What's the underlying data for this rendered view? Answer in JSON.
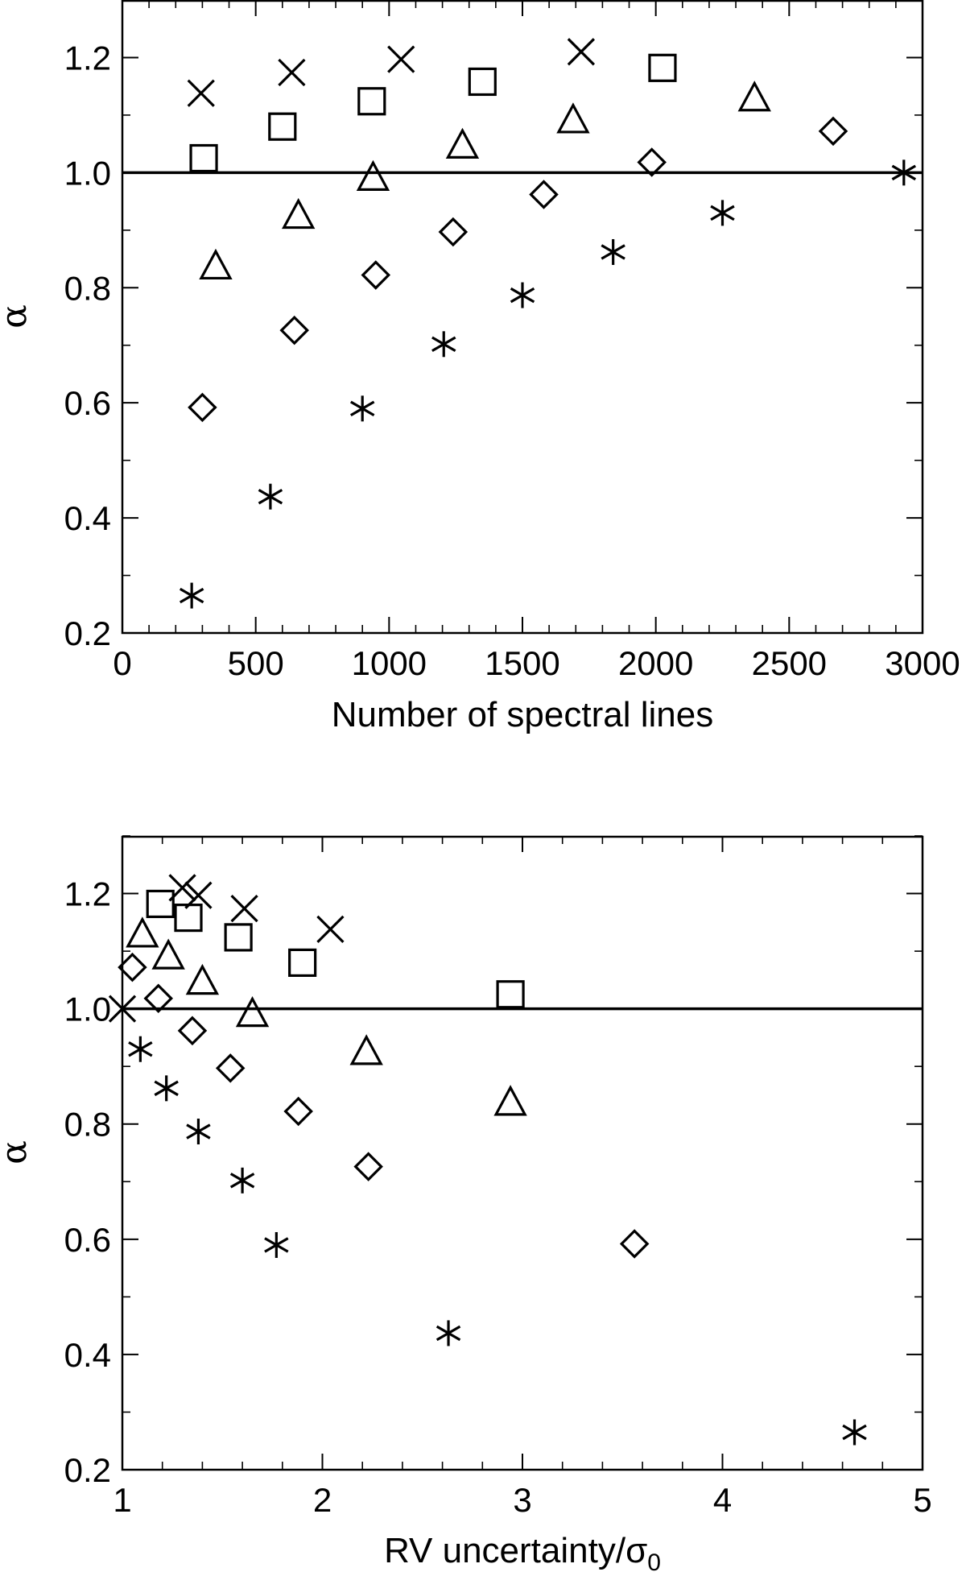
{
  "chart_data": [
    {
      "type": "scatter",
      "xlabel": "Number of spectral lines",
      "ylabel": "α",
      "xlim": [
        0,
        3000
      ],
      "ylim": [
        0.2,
        1.3
      ],
      "xticks": [
        "0",
        "500",
        "1000",
        "1500",
        "2000",
        "2500",
        "3000"
      ],
      "yticks": [
        "0.2",
        "0.4",
        "0.6",
        "0.8",
        "1.0",
        "1.2"
      ],
      "reference_line": 1.0,
      "series": [
        {
          "marker": "asterisk",
          "points": [
            [
              260,
              0.265
            ],
            [
              555,
              0.437
            ],
            [
              900,
              0.59
            ],
            [
              1205,
              0.702
            ],
            [
              1500,
              0.787
            ],
            [
              1840,
              0.862
            ],
            [
              2250,
              0.93
            ],
            [
              2930,
              1.0
            ]
          ]
        },
        {
          "marker": "diamond",
          "points": [
            [
              300,
              0.592
            ],
            [
              645,
              0.726
            ],
            [
              950,
              0.822
            ],
            [
              1240,
              0.897
            ],
            [
              1580,
              0.962
            ],
            [
              1985,
              1.018
            ],
            [
              2665,
              1.072
            ]
          ]
        },
        {
          "marker": "triangle",
          "points": [
            [
              350,
              0.838
            ],
            [
              660,
              0.926
            ],
            [
              940,
              0.992
            ],
            [
              1275,
              1.048
            ],
            [
              1690,
              1.092
            ],
            [
              2370,
              1.13
            ]
          ]
        },
        {
          "marker": "square",
          "points": [
            [
              305,
              1.025
            ],
            [
              600,
              1.08
            ],
            [
              935,
              1.124
            ],
            [
              1350,
              1.158
            ],
            [
              2025,
              1.182
            ]
          ]
        },
        {
          "marker": "cross",
          "points": [
            [
              295,
              1.138
            ],
            [
              635,
              1.174
            ],
            [
              1045,
              1.197
            ],
            [
              1720,
              1.21
            ]
          ]
        }
      ]
    },
    {
      "type": "scatter",
      "xlabel": "RV uncertainty/σ",
      "xlabel_subscript": "0",
      "ylabel": "α",
      "xlim": [
        1,
        5
      ],
      "ylim": [
        0.2,
        1.3
      ],
      "xticks": [
        "1",
        "2",
        "3",
        "4",
        "5"
      ],
      "yticks": [
        "0.2",
        "0.4",
        "0.6",
        "0.8",
        "1.0",
        "1.2"
      ],
      "reference_line": 1.0,
      "series": [
        {
          "marker": "asterisk",
          "points": [
            [
              1.09,
              0.93
            ],
            [
              1.22,
              0.862
            ],
            [
              1.38,
              0.787
            ],
            [
              1.6,
              0.702
            ],
            [
              1.77,
              0.59
            ],
            [
              2.63,
              0.437
            ],
            [
              4.66,
              0.265
            ]
          ]
        },
        {
          "marker": "diamond",
          "points": [
            [
              1.05,
              1.072
            ],
            [
              1.18,
              1.018
            ],
            [
              1.35,
              0.962
            ],
            [
              1.54,
              0.897
            ],
            [
              1.88,
              0.822
            ],
            [
              2.23,
              0.726
            ],
            [
              3.56,
              0.592
            ]
          ]
        },
        {
          "marker": "triangle",
          "points": [
            [
              1.1,
              1.13
            ],
            [
              1.23,
              1.092
            ],
            [
              1.4,
              1.048
            ],
            [
              1.65,
              0.992
            ],
            [
              2.22,
              0.926
            ],
            [
              2.94,
              0.838
            ]
          ]
        },
        {
          "marker": "square",
          "points": [
            [
              1.19,
              1.182
            ],
            [
              1.33,
              1.158
            ],
            [
              1.58,
              1.124
            ],
            [
              1.9,
              1.08
            ],
            [
              2.94,
              1.025
            ]
          ]
        },
        {
          "marker": "cross",
          "points": [
            [
              1.0,
              1.0
            ],
            [
              1.3,
              1.21
            ],
            [
              1.38,
              1.197
            ],
            [
              1.61,
              1.174
            ],
            [
              2.04,
              1.138
            ]
          ]
        }
      ]
    }
  ]
}
